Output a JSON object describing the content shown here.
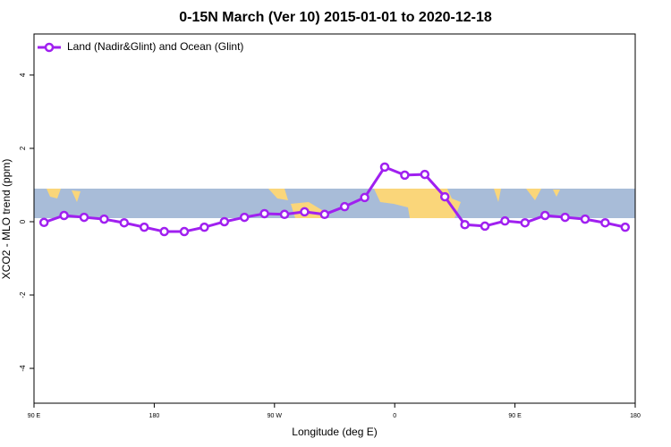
{
  "chart_data": {
    "type": "line",
    "title": "0-15N March (Ver 10)   2015-01-01 to 2020-12-18",
    "x_label": "Longitude (deg E)",
    "y_label": "XCO2 - MLO trend (ppm)",
    "x": [
      97.5,
      112.5,
      127.5,
      142.5,
      157.5,
      172.5,
      187.5,
      202.5,
      217.5,
      232.5,
      247.5,
      262.5,
      277.5,
      292.5,
      307.5,
      322.5,
      337.5,
      352.5,
      367.5,
      382.5,
      397.5,
      412.5,
      427.5,
      442.5,
      457.5,
      472.5,
      487.5,
      502.5,
      517.5,
      532.5
    ],
    "series": [
      {
        "name": "Land (Nadir&Glint) and Ocean (Glint)",
        "color": "#a020f0",
        "values": [
          -0.02,
          0.17,
          0.12,
          0.07,
          -0.03,
          -0.15,
          -0.27,
          -0.27,
          -0.15,
          0.0,
          0.12,
          0.22,
          0.2,
          0.27,
          0.2,
          0.41,
          0.66,
          1.49,
          1.27,
          1.29,
          0.68,
          -0.08,
          -0.12,
          0.02,
          -0.03,
          0.17,
          0.12,
          0.07,
          -0.03,
          -0.15
        ]
      }
    ],
    "xlim": [
      90,
      540
    ],
    "xticks": [
      {
        "value": 90,
        "label": "90 E"
      },
      {
        "value": 180,
        "label": "180"
      },
      {
        "value": 270,
        "label": "90 W"
      },
      {
        "value": 360,
        "label": "0"
      },
      {
        "value": 450,
        "label": "90 E"
      },
      {
        "value": 540,
        "label": "180"
      }
    ],
    "ylim": [
      -4.95,
      5.12
    ],
    "yticks": [
      -4,
      -2,
      0,
      2,
      4
    ],
    "legend": "top-left"
  }
}
